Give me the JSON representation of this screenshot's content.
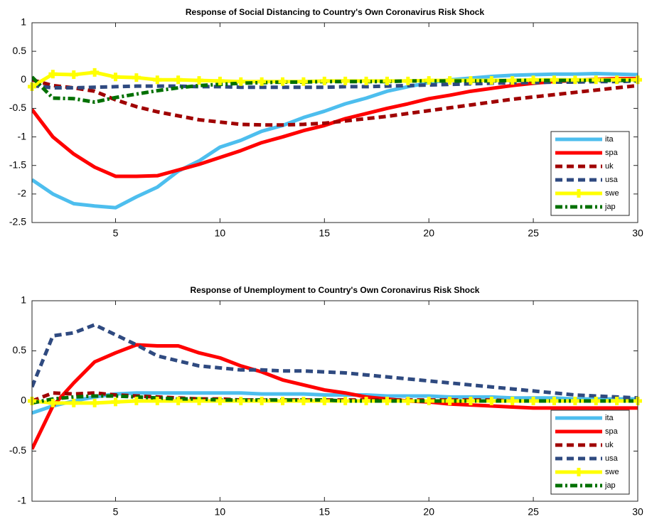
{
  "chart_data": [
    {
      "type": "line",
      "title": "Response of Social Distancing to Country's Own Coronavirus Risk Shock",
      "x": [
        1,
        2,
        3,
        4,
        5,
        6,
        7,
        8,
        9,
        10,
        11,
        12,
        13,
        14,
        15,
        16,
        17,
        18,
        19,
        20,
        21,
        22,
        23,
        24,
        25,
        26,
        27,
        28,
        29,
        30
      ],
      "xlim": [
        1,
        30
      ],
      "xticks": [
        5,
        10,
        15,
        20,
        25,
        30
      ],
      "ylim": [
        -2.5,
        1
      ],
      "yticks": [
        -2.5,
        -2,
        -1.5,
        -1,
        -0.5,
        0,
        0.5,
        1
      ],
      "legend": "lower right",
      "series": [
        {
          "name": "ita",
          "color": "#4dbeee",
          "line_style": "solid",
          "values": [
            -1.75,
            -2.0,
            -2.17,
            -2.21,
            -2.24,
            -2.05,
            -1.88,
            -1.6,
            -1.42,
            -1.18,
            -1.06,
            -0.9,
            -0.8,
            -0.66,
            -0.55,
            -0.42,
            -0.32,
            -0.2,
            -0.12,
            -0.05,
            0.0,
            0.03,
            0.06,
            0.08,
            0.09,
            0.1,
            0.1,
            0.11,
            0.1,
            0.09
          ]
        },
        {
          "name": "spa",
          "color": "#ff0000",
          "line_style": "solid",
          "values": [
            -0.52,
            -1.0,
            -1.3,
            -1.53,
            -1.69,
            -1.69,
            -1.68,
            -1.58,
            -1.48,
            -1.36,
            -1.24,
            -1.1,
            -1.0,
            -0.89,
            -0.8,
            -0.68,
            -0.59,
            -0.5,
            -0.42,
            -0.33,
            -0.27,
            -0.2,
            -0.15,
            -0.1,
            -0.06,
            -0.03,
            -0.01,
            0.01,
            0.02,
            0.02
          ]
        },
        {
          "name": "uk",
          "color": "#a00000",
          "line_style": "dashed",
          "values": [
            0.0,
            -0.1,
            -0.14,
            -0.2,
            -0.35,
            -0.47,
            -0.56,
            -0.63,
            -0.7,
            -0.74,
            -0.78,
            -0.79,
            -0.79,
            -0.78,
            -0.76,
            -0.72,
            -0.68,
            -0.64,
            -0.59,
            -0.54,
            -0.49,
            -0.44,
            -0.39,
            -0.34,
            -0.3,
            -0.26,
            -0.22,
            -0.18,
            -0.14,
            -0.1
          ]
        },
        {
          "name": "usa",
          "color": "#2f4a80",
          "line_style": "dashed",
          "values": [
            -0.1,
            -0.14,
            -0.14,
            -0.13,
            -0.12,
            -0.11,
            -0.11,
            -0.11,
            -0.12,
            -0.12,
            -0.13,
            -0.13,
            -0.13,
            -0.13,
            -0.13,
            -0.12,
            -0.12,
            -0.11,
            -0.1,
            -0.09,
            -0.08,
            -0.07,
            -0.06,
            -0.05,
            -0.05,
            -0.04,
            -0.04,
            -0.03,
            -0.03,
            -0.02
          ]
        },
        {
          "name": "swe",
          "color": "#ffff00",
          "line_style": "solid",
          "marker": "plus",
          "values": [
            -0.12,
            0.1,
            0.09,
            0.13,
            0.05,
            0.04,
            0.0,
            0.0,
            -0.01,
            -0.02,
            -0.03,
            -0.03,
            -0.03,
            -0.03,
            -0.02,
            -0.02,
            -0.02,
            -0.02,
            -0.02,
            -0.01,
            -0.01,
            -0.01,
            -0.01,
            -0.01,
            0,
            0,
            0,
            0,
            0,
            0
          ]
        },
        {
          "name": "jap",
          "color": "#007000",
          "line_style": "dashdot",
          "values": [
            0.05,
            -0.32,
            -0.33,
            -0.39,
            -0.31,
            -0.25,
            -0.19,
            -0.14,
            -0.1,
            -0.08,
            -0.06,
            -0.05,
            -0.04,
            -0.04,
            -0.03,
            -0.03,
            -0.03,
            -0.03,
            -0.02,
            -0.02,
            -0.02,
            -0.02,
            -0.02,
            -0.01,
            -0.01,
            -0.01,
            -0.01,
            -0.01,
            -0.01,
            -0.01
          ]
        }
      ]
    },
    {
      "type": "line",
      "title": "Response of Unemployment to Country's Own Coronavirus Risk Shock",
      "x": [
        1,
        2,
        3,
        4,
        5,
        6,
        7,
        8,
        9,
        10,
        11,
        12,
        13,
        14,
        15,
        16,
        17,
        18,
        19,
        20,
        21,
        22,
        23,
        24,
        25,
        26,
        27,
        28,
        29,
        30
      ],
      "xlim": [
        1,
        30
      ],
      "xticks": [
        5,
        10,
        15,
        20,
        25,
        30
      ],
      "ylim": [
        -1,
        1
      ],
      "yticks": [
        -1,
        -0.5,
        0,
        0.5,
        1
      ],
      "legend": "lower right",
      "series": [
        {
          "name": "ita",
          "color": "#4dbeee",
          "line_style": "solid",
          "values": [
            -0.12,
            -0.05,
            0.0,
            0.04,
            0.07,
            0.08,
            0.08,
            0.08,
            0.08,
            0.08,
            0.08,
            0.07,
            0.07,
            0.07,
            0.06,
            0.06,
            0.06,
            0.05,
            0.05,
            0.05,
            0.04,
            0.04,
            0.04,
            0.03,
            0.03,
            0.03,
            0.02,
            0.02,
            0.02,
            0.02
          ]
        },
        {
          "name": "spa",
          "color": "#ff0000",
          "line_style": "solid",
          "values": [
            -0.48,
            -0.05,
            0.18,
            0.39,
            0.48,
            0.56,
            0.55,
            0.55,
            0.48,
            0.43,
            0.35,
            0.29,
            0.21,
            0.16,
            0.11,
            0.08,
            0.04,
            0.02,
            0.0,
            -0.01,
            -0.03,
            -0.04,
            -0.05,
            -0.06,
            -0.07,
            -0.07,
            -0.07,
            -0.07,
            -0.07,
            -0.07
          ]
        },
        {
          "name": "uk",
          "color": "#a00000",
          "line_style": "dashed",
          "values": [
            0.0,
            0.08,
            0.07,
            0.08,
            0.06,
            0.05,
            0.04,
            0.03,
            0.02,
            0.02,
            0.01,
            0.01,
            0.01,
            0.01,
            0.01,
            0.01,
            0.01,
            0.01,
            0.01,
            0.01,
            0.01,
            0.01,
            0.01,
            0,
            0,
            0,
            0,
            0,
            0,
            0
          ]
        },
        {
          "name": "usa",
          "color": "#2f4a80",
          "line_style": "dashed",
          "values": [
            0.14,
            0.65,
            0.68,
            0.76,
            0.66,
            0.56,
            0.45,
            0.4,
            0.35,
            0.33,
            0.31,
            0.31,
            0.3,
            0.3,
            0.29,
            0.28,
            0.26,
            0.24,
            0.22,
            0.2,
            0.18,
            0.16,
            0.14,
            0.12,
            0.1,
            0.08,
            0.06,
            0.05,
            0.04,
            0.03
          ]
        },
        {
          "name": "swe",
          "color": "#ffff00",
          "line_style": "solid",
          "marker": "plus",
          "values": [
            0,
            -0.02,
            -0.02,
            -0.02,
            -0.01,
            0,
            0,
            0,
            0,
            0,
            0,
            0,
            0,
            0,
            0,
            0,
            0,
            0,
            0,
            0,
            0,
            0,
            0,
            0,
            0,
            0,
            0,
            0,
            0,
            0
          ]
        },
        {
          "name": "jap",
          "color": "#007000",
          "line_style": "dashdot",
          "values": [
            -0.02,
            0.02,
            0.04,
            0.05,
            0.05,
            0.04,
            0.03,
            0.02,
            0.02,
            0.01,
            0.01,
            0.01,
            0.01,
            0.01,
            0.01,
            0,
            0,
            0,
            0,
            0,
            0,
            0,
            0,
            0,
            0,
            0,
            0,
            0,
            0,
            0
          ]
        }
      ]
    }
  ]
}
